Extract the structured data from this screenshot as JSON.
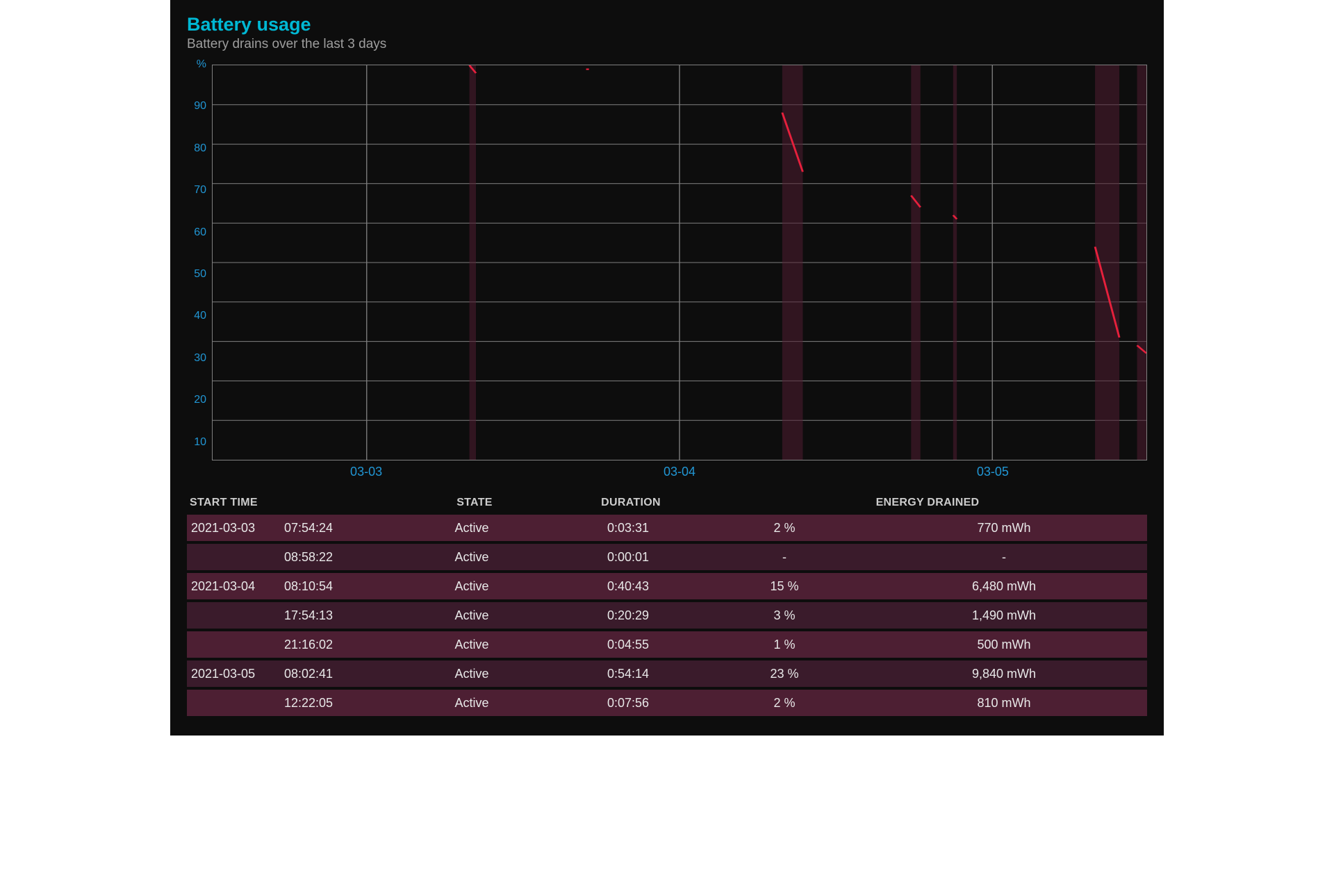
{
  "header": {
    "title": "Battery usage",
    "subtitle": "Battery drains over the last 3 days"
  },
  "chart": {
    "type": "line",
    "background_color": "#0d0d0d",
    "grid_color": "#808080",
    "line_color": "#e6203c",
    "band_color": "rgba(80,30,50,0.55)",
    "axis_label_color": "#2196d4",
    "ylim": [
      0,
      100
    ],
    "yticks": [
      "%",
      "90",
      "80",
      "70",
      "60",
      "50",
      "40",
      "30",
      "20",
      "10"
    ],
    "xticks": [
      {
        "label": "03-03",
        "pos_pct": 16.5
      },
      {
        "label": "03-04",
        "pos_pct": 50.0
      },
      {
        "label": "03-05",
        "pos_pct": 83.5
      }
    ],
    "vgrid_positions_pct": [
      16.5,
      50.0,
      83.5
    ],
    "bands": [
      {
        "x0_pct": 27.5,
        "x1_pct": 28.2
      },
      {
        "x0_pct": 61.0,
        "x1_pct": 63.2
      },
      {
        "x0_pct": 74.8,
        "x1_pct": 75.8
      },
      {
        "x0_pct": 79.3,
        "x1_pct": 79.7
      },
      {
        "x0_pct": 94.5,
        "x1_pct": 97.1
      },
      {
        "x0_pct": 99.0,
        "x1_pct": 100.0
      }
    ],
    "segments": [
      {
        "x0_pct": 27.5,
        "y0_pct": 100,
        "x1_pct": 28.2,
        "y1_pct": 98
      },
      {
        "x0_pct": 40.0,
        "y0_pct": 99,
        "x1_pct": 40.3,
        "y1_pct": 99
      },
      {
        "x0_pct": 61.0,
        "y0_pct": 88,
        "x1_pct": 63.2,
        "y1_pct": 73
      },
      {
        "x0_pct": 74.8,
        "y0_pct": 67,
        "x1_pct": 75.8,
        "y1_pct": 64
      },
      {
        "x0_pct": 79.3,
        "y0_pct": 62,
        "x1_pct": 79.7,
        "y1_pct": 61
      },
      {
        "x0_pct": 94.5,
        "y0_pct": 54,
        "x1_pct": 97.1,
        "y1_pct": 31
      },
      {
        "x0_pct": 99.0,
        "y0_pct": 29,
        "x1_pct": 100.0,
        "y1_pct": 27
      }
    ]
  },
  "table": {
    "row_colors": [
      "#4d1f33",
      "#3a1b2b"
    ],
    "text_color": "#e8e8e8",
    "header_color": "#cccccc",
    "columns": {
      "start": "START TIME",
      "state": "STATE",
      "duration": "DURATION",
      "drained": "ENERGY DRAINED"
    },
    "rows": [
      {
        "date": "2021-03-03",
        "time": "07:54:24",
        "state": "Active",
        "duration": "0:03:31",
        "pct": "2 %",
        "mwh": "770 mWh"
      },
      {
        "date": "",
        "time": "08:58:22",
        "state": "Active",
        "duration": "0:00:01",
        "pct": "-",
        "mwh": "-"
      },
      {
        "date": "2021-03-04",
        "time": "08:10:54",
        "state": "Active",
        "duration": "0:40:43",
        "pct": "15 %",
        "mwh": "6,480 mWh"
      },
      {
        "date": "",
        "time": "17:54:13",
        "state": "Active",
        "duration": "0:20:29",
        "pct": "3 %",
        "mwh": "1,490 mWh"
      },
      {
        "date": "",
        "time": "21:16:02",
        "state": "Active",
        "duration": "0:04:55",
        "pct": "1 %",
        "mwh": "500 mWh"
      },
      {
        "date": "2021-03-05",
        "time": "08:02:41",
        "state": "Active",
        "duration": "0:54:14",
        "pct": "23 %",
        "mwh": "9,840 mWh"
      },
      {
        "date": "",
        "time": "12:22:05",
        "state": "Active",
        "duration": "0:07:56",
        "pct": "2 %",
        "mwh": "810 mWh"
      }
    ]
  }
}
